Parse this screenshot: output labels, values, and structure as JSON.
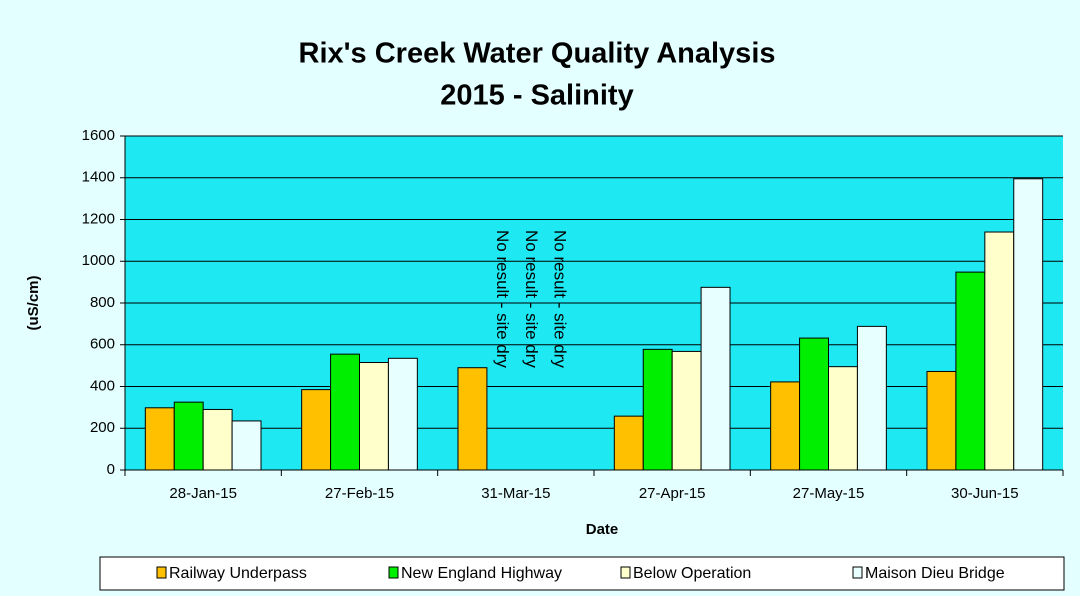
{
  "chart_data": {
    "type": "bar",
    "title": "Rix's Creek Water Quality Analysis",
    "subtitle": "2015 - Salinity",
    "y_label": "(uS/cm)",
    "x_label": "Date",
    "categories": [
      "28-Jan-15",
      "27-Feb-15",
      "31-Mar-15",
      "27-Apr-15",
      "27-May-15",
      "30-Jun-15"
    ],
    "series": [
      {
        "name": "Railway Underpass",
        "color": "#ffc000",
        "values": [
          298,
          385,
          490,
          258,
          422,
          472
        ]
      },
      {
        "name": "New England Highway",
        "color": "#00ee00",
        "values": [
          325,
          555,
          null,
          578,
          632,
          948
        ]
      },
      {
        "name": "Below Operation",
        "color": "#ffffcc",
        "values": [
          290,
          515,
          null,
          568,
          495,
          1140
        ]
      },
      {
        "name": "Maison Dieu Bridge",
        "color": "#e8ffff",
        "values": [
          235,
          535,
          null,
          875,
          688,
          1395
        ]
      }
    ],
    "annotations": [
      "No result - site dry",
      "No result - site dry",
      "No result - site dry"
    ],
    "ylim": [
      0,
      1600
    ],
    "yticks": [
      0,
      200,
      400,
      600,
      800,
      1000,
      1200,
      1400,
      1600
    ],
    "grid": true,
    "legend": "bottom"
  }
}
